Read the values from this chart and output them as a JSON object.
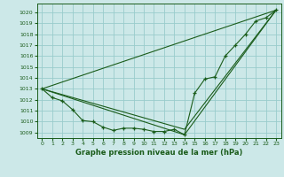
{
  "title": "Graphe pression niveau de la mer (hPa)",
  "bg_color": "#cce8e8",
  "grid_color": "#99cccc",
  "line_color": "#1a5c1a",
  "marker_color": "#1a5c1a",
  "xlim": [
    -0.5,
    23.5
  ],
  "ylim": [
    1008.5,
    1020.8
  ],
  "yticks": [
    1009,
    1010,
    1011,
    1012,
    1013,
    1014,
    1015,
    1016,
    1017,
    1018,
    1019,
    1020
  ],
  "xticks": [
    0,
    1,
    2,
    3,
    4,
    5,
    6,
    7,
    8,
    9,
    10,
    11,
    12,
    13,
    14,
    15,
    16,
    17,
    18,
    19,
    20,
    21,
    22,
    23
  ],
  "series": [
    {
      "x": [
        0,
        1,
        2,
        3,
        4,
        5,
        6,
        7,
        8,
        9,
        10,
        11,
        12,
        13,
        14,
        15,
        16,
        17,
        18,
        19,
        20,
        21,
        22,
        23
      ],
      "y": [
        1013.0,
        1012.2,
        1011.9,
        1011.1,
        1010.1,
        1010.0,
        1009.5,
        1009.2,
        1009.4,
        1009.4,
        1009.3,
        1009.1,
        1009.1,
        1009.3,
        1008.8,
        1012.6,
        1013.9,
        1014.1,
        1016.0,
        1017.0,
        1018.0,
        1019.2,
        1019.5,
        1020.2
      ],
      "has_markers": true
    },
    {
      "x": [
        0,
        23
      ],
      "y": [
        1013.0,
        1020.2
      ],
      "has_markers": false
    },
    {
      "x": [
        0,
        14,
        23
      ],
      "y": [
        1013.0,
        1008.8,
        1020.2
      ],
      "has_markers": false
    },
    {
      "x": [
        0,
        14,
        23
      ],
      "y": [
        1013.0,
        1009.3,
        1020.2
      ],
      "has_markers": false
    }
  ]
}
